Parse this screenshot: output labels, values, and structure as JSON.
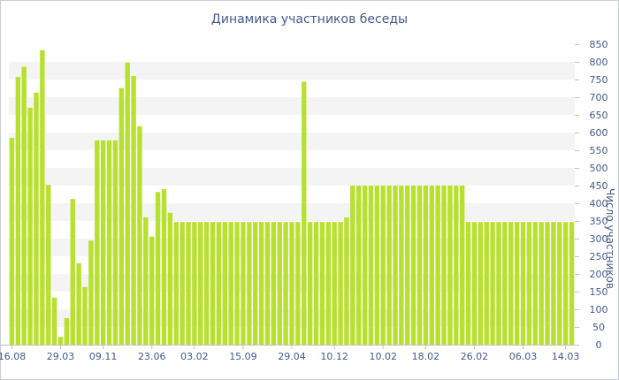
{
  "chart_data": {
    "type": "bar",
    "title": "Динамика участников беседы",
    "xlabel": "",
    "ylabel": "Число участников",
    "ylim": [
      0,
      850
    ],
    "y_ticks": [
      0,
      50,
      100,
      150,
      200,
      250,
      300,
      350,
      400,
      450,
      500,
      550,
      600,
      650,
      700,
      750,
      800,
      850
    ],
    "y_axis_position": "right",
    "grid": "alternating horizontal bands",
    "legend": "none",
    "x_tick_labels": [
      {
        "label": "16.08",
        "index": 0
      },
      {
        "label": "29.03",
        "index": 8
      },
      {
        "label": "09.11",
        "index": 15
      },
      {
        "label": "23.06",
        "index": 23
      },
      {
        "label": "03.02",
        "index": 30
      },
      {
        "label": "15.09",
        "index": 38
      },
      {
        "label": "29.04",
        "index": 46
      },
      {
        "label": "10.12",
        "index": 53
      },
      {
        "label": "10.02",
        "index": 61
      },
      {
        "label": "18.02",
        "index": 68
      },
      {
        "label": "26.02",
        "index": 76
      },
      {
        "label": "06.03",
        "index": 84
      },
      {
        "label": "14.03",
        "index": 91
      }
    ],
    "values": [
      585,
      757,
      786,
      670,
      713,
      833,
      452,
      133,
      22,
      75,
      412,
      230,
      163,
      294,
      578,
      578,
      578,
      578,
      726,
      798,
      760,
      618,
      360,
      306,
      432,
      440,
      373,
      347,
      347,
      347,
      347,
      347,
      347,
      347,
      347,
      347,
      347,
      347,
      347,
      347,
      347,
      347,
      347,
      347,
      347,
      347,
      347,
      347,
      744,
      347,
      347,
      347,
      347,
      347,
      347,
      360,
      450,
      450,
      450,
      450,
      450,
      450,
      450,
      450,
      450,
      450,
      450,
      450,
      450,
      450,
      450,
      450,
      450,
      450,
      450,
      347,
      347,
      347,
      347,
      347,
      347,
      347,
      347,
      347,
      347,
      347,
      347,
      347,
      347,
      347,
      347,
      347,
      347
    ],
    "colors": {
      "bar": "#b8e02e",
      "band": "#f4f4f4",
      "axis": "#c0c0c0",
      "text": "#45598a"
    }
  }
}
